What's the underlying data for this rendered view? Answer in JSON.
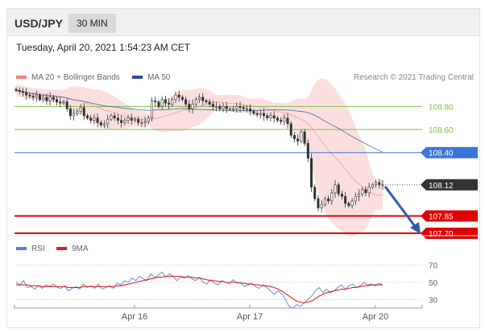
{
  "header": {
    "pair": "USD/JPY",
    "timeframe": "30 MIN"
  },
  "datetime": "Tuesday, April 20, 2021 1:54:23 AM CET",
  "credit": "Research © 2021 Trading Central",
  "colors": {
    "bollinger": "#f08080",
    "ma50": "#2b4d8c",
    "rsi": "#5b7fd6",
    "rsi_ma": "#e02020",
    "resistance_green": "#7cbf4a",
    "pivot_blue": "#3a76d8",
    "support_red": "#e00000",
    "arrow": "#2b5ea8",
    "last_price": "#333333"
  },
  "chart_data": [
    {
      "type": "candlestick",
      "legend": [
        {
          "label": "MA 20 + Bollinger Bands",
          "color": "#f08080"
        },
        {
          "label": "MA 50",
          "color": "#2b4d8c"
        }
      ],
      "x_ticks": [
        "Apr 16",
        "Apr 17",
        "Apr 20"
      ],
      "ylim": [
        107.63,
        109.04
      ],
      "levels": [
        {
          "value": 108.8,
          "label": "108.80",
          "style": "resistance"
        },
        {
          "value": 108.6,
          "label": "108.60",
          "style": "resistance"
        },
        {
          "value": 108.4,
          "label": "108.40",
          "style": "pivot"
        },
        {
          "value": 108.12,
          "label": "108.12",
          "style": "last"
        },
        {
          "value": 107.85,
          "label": "107.85",
          "style": "support"
        },
        {
          "value": 107.7,
          "label": "107.70",
          "style": "support"
        }
      ],
      "forecast_arrow": {
        "from": 108.12,
        "to": 107.7
      },
      "close": [
        108.94,
        108.93,
        108.92,
        108.9,
        108.89,
        108.88,
        108.9,
        108.86,
        108.88,
        108.85,
        108.88,
        108.86,
        108.84,
        108.83,
        108.84,
        108.78,
        108.72,
        108.74,
        108.76,
        108.79,
        108.72,
        108.7,
        108.68,
        108.7,
        108.66,
        108.64,
        108.65,
        108.69,
        108.72,
        108.7,
        108.68,
        108.66,
        108.68,
        108.7,
        108.68,
        108.69,
        108.66,
        108.66,
        108.67,
        108.7,
        108.85,
        108.84,
        108.8,
        108.86,
        108.83,
        108.82,
        108.86,
        108.9,
        108.88,
        108.86,
        108.82,
        108.78,
        108.82,
        108.86,
        108.88,
        108.85,
        108.84,
        108.82,
        108.8,
        108.8,
        108.78,
        108.8,
        108.78,
        108.78,
        108.78,
        108.8,
        108.79,
        108.78,
        108.78,
        108.76,
        108.74,
        108.73,
        108.74,
        108.72,
        108.7,
        108.72,
        108.7,
        108.68,
        108.67,
        108.7,
        108.65,
        108.55,
        108.52,
        108.5,
        108.58,
        108.48,
        108.35,
        108.1,
        108.0,
        107.92,
        107.95,
        108.0,
        107.98,
        108.05,
        108.12,
        108.04,
        108.02,
        107.96,
        107.94,
        107.98,
        108.02,
        108.04,
        108.08,
        108.05,
        108.1,
        108.12,
        108.14,
        108.12,
        108.12
      ]
    },
    {
      "type": "line",
      "legend": [
        {
          "label": "RSI",
          "color": "#5b7fd6"
        },
        {
          "label": "9MA",
          "color": "#e02020"
        }
      ],
      "ylim": [
        20,
        80
      ],
      "y_ticks": [
        70,
        50,
        30
      ],
      "series": [
        {
          "name": "RSI",
          "values": [
            50,
            47,
            52,
            44,
            45,
            42,
            46,
            43,
            47,
            45,
            48,
            44,
            43,
            46,
            40,
            43,
            45,
            42,
            48,
            44,
            46,
            43,
            48,
            42,
            44,
            46,
            43,
            49,
            47,
            52,
            50,
            55,
            52,
            57,
            54,
            52,
            60,
            56,
            58,
            62,
            56,
            60,
            57,
            52,
            56,
            55,
            58,
            54,
            52,
            56,
            50,
            48,
            53,
            49,
            47,
            52,
            50,
            48,
            53,
            49,
            50,
            45,
            47,
            49,
            45,
            43,
            47,
            44,
            40,
            36,
            40,
            37,
            30,
            22,
            20,
            24,
            22,
            26,
            30,
            34,
            40,
            44,
            38,
            42,
            38,
            40,
            44,
            47,
            42,
            46,
            48,
            44,
            46,
            50,
            47,
            48,
            46,
            49,
            47
          ]
        },
        {
          "name": "9MA",
          "values": [
            47,
            47,
            47,
            47,
            46,
            46,
            46,
            45,
            45,
            45,
            45,
            45,
            45,
            45,
            44,
            44,
            44,
            44,
            45,
            45,
            45,
            45,
            45,
            45,
            45,
            45,
            45,
            46,
            46,
            47,
            48,
            49,
            50,
            51,
            52,
            53,
            54,
            55,
            56,
            56,
            57,
            57,
            57,
            57,
            57,
            56,
            56,
            56,
            55,
            55,
            54,
            53,
            52,
            52,
            51,
            51,
            50,
            50,
            50,
            50,
            49,
            49,
            48,
            48,
            47,
            47,
            46,
            46,
            45,
            44,
            42,
            40,
            37,
            34,
            31,
            28,
            27,
            26,
            27,
            28,
            31,
            34,
            36,
            38,
            39,
            40,
            41,
            42,
            42,
            43,
            44,
            44,
            45,
            46,
            46,
            47,
            47,
            47,
            47
          ]
        }
      ]
    }
  ]
}
